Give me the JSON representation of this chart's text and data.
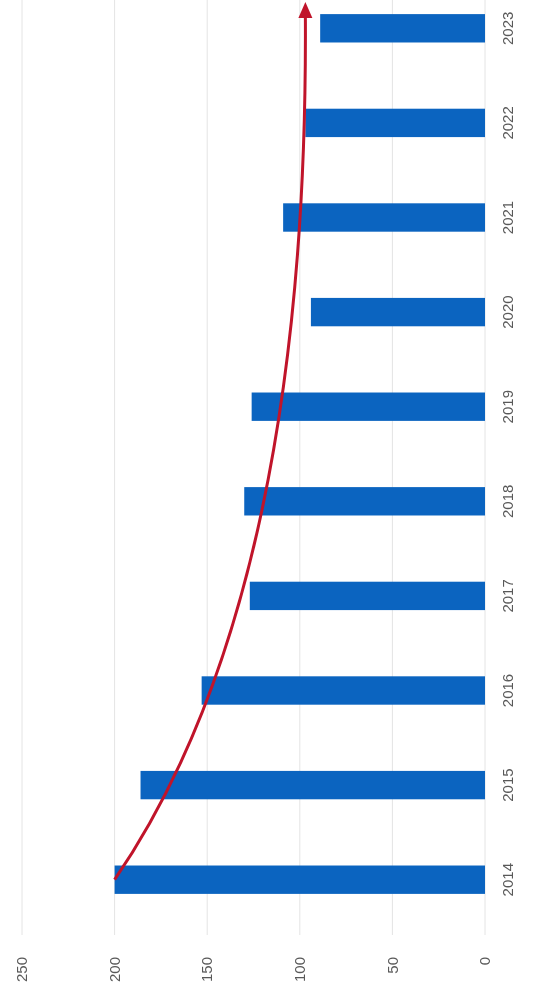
{
  "chart_data": {
    "type": "bar",
    "orientation": "horizontal",
    "categories": [
      "2023",
      "2022",
      "2021",
      "2020",
      "2019",
      "2018",
      "2017",
      "2016",
      "2015",
      "2014"
    ],
    "values": [
      89,
      97,
      109,
      94,
      126,
      130,
      127,
      153,
      186,
      200
    ],
    "color": "#0b64c0",
    "xlim": [
      250,
      0
    ],
    "xticks": [
      250,
      200,
      150,
      100,
      50,
      0
    ],
    "grid": "x"
  }
}
